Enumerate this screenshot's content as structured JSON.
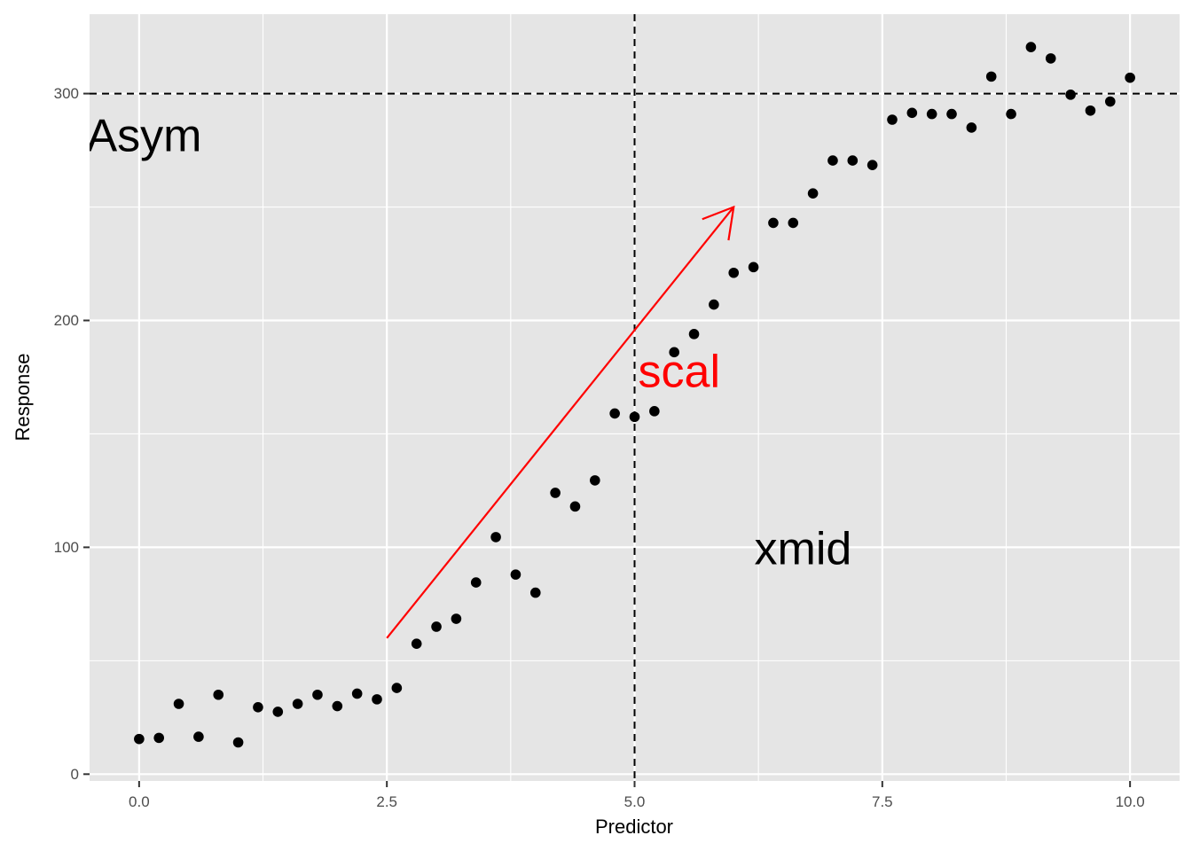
{
  "chart_data": {
    "type": "scatter",
    "title": "",
    "xlabel": "Predictor",
    "ylabel": "Response",
    "xlim": [
      -0.5,
      10.5
    ],
    "ylim": [
      -3,
      335
    ],
    "x_ticks": [
      0,
      2.5,
      5,
      7.5,
      10
    ],
    "x_tick_labels": [
      "0.0",
      "2.5",
      "5.0",
      "7.5",
      "10.0"
    ],
    "y_ticks": [
      0,
      100,
      200,
      300
    ],
    "y_tick_labels": [
      "0",
      "100",
      "200",
      "300"
    ],
    "grid": true,
    "legend": "none",
    "colors": {
      "panel": "#e5e5e5",
      "grid": "#ffffff",
      "points": "#000000",
      "arrow": "#ff0000",
      "annotation": "#000000",
      "scal": "#ff0000"
    },
    "points": {
      "x": [
        0,
        0.2,
        0.4,
        0.6,
        0.8,
        1.0,
        1.2,
        1.4,
        1.6,
        1.8,
        2.0,
        2.2,
        2.4,
        2.6,
        2.8,
        3.0,
        3.2,
        3.4,
        3.6,
        3.8,
        4.0,
        4.2,
        4.4,
        4.6,
        4.8,
        5.0,
        5.2,
        5.4,
        5.6,
        5.8,
        6.0,
        6.2,
        6.4,
        6.6,
        6.8,
        7.0,
        7.2,
        7.4,
        7.6,
        7.8,
        8.0,
        8.2,
        8.4,
        8.6,
        8.8,
        9.0,
        9.2,
        9.4,
        9.6,
        9.8,
        10.0
      ],
      "y": [
        15.5,
        16,
        31,
        16.5,
        35,
        14,
        29.5,
        27.5,
        31,
        35,
        30,
        35.5,
        33,
        38,
        57.5,
        65,
        68.5,
        84.5,
        104.5,
        88,
        80,
        124,
        118,
        129.5,
        159,
        157.5,
        160,
        186,
        194,
        207,
        221,
        223.5,
        243,
        243,
        256,
        270.5,
        270.5,
        268.5,
        288.5,
        291.5,
        291,
        291,
        285,
        307.5,
        291,
        320.5,
        315.5,
        299.5,
        292.5,
        296.5,
        307
      ]
    },
    "reference_lines": {
      "hline_y": 300,
      "vline_x": 5
    },
    "arrow": {
      "x_start": 2.5,
      "y_start": 60,
      "x_end": 6,
      "y_end": 250
    },
    "annotations": {
      "asym": {
        "text": "Asym",
        "x": 0.05,
        "y": 280
      },
      "scal": {
        "text": "scal",
        "x": 5.45,
        "y": 176
      },
      "xmid": {
        "text": "xmid",
        "x": 6.7,
        "y": 98
      }
    }
  }
}
